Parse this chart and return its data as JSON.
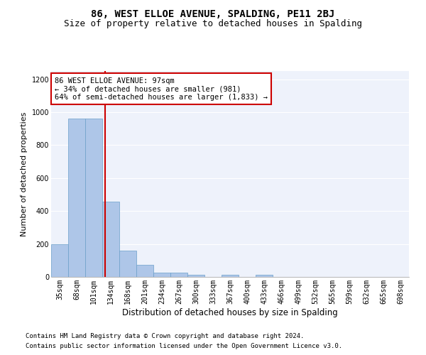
{
  "title1": "86, WEST ELLOE AVENUE, SPALDING, PE11 2BJ",
  "title2": "Size of property relative to detached houses in Spalding",
  "xlabel": "Distribution of detached houses by size in Spalding",
  "ylabel": "Number of detached properties",
  "footnote1": "Contains HM Land Registry data © Crown copyright and database right 2024.",
  "footnote2": "Contains public sector information licensed under the Open Government Licence v3.0.",
  "annotation_line1": "86 WEST ELLOE AVENUE: 97sqm",
  "annotation_line2": "← 34% of detached houses are smaller (981)",
  "annotation_line3": "64% of semi-detached houses are larger (1,833) →",
  "categories": [
    "35sqm",
    "68sqm",
    "101sqm",
    "134sqm",
    "168sqm",
    "201sqm",
    "234sqm",
    "267sqm",
    "300sqm",
    "333sqm",
    "367sqm",
    "400sqm",
    "433sqm",
    "466sqm",
    "499sqm",
    "532sqm",
    "565sqm",
    "599sqm",
    "632sqm",
    "665sqm",
    "698sqm"
  ],
  "values": [
    200,
    960,
    960,
    455,
    160,
    75,
    25,
    25,
    15,
    0,
    15,
    0,
    15,
    0,
    0,
    0,
    0,
    0,
    0,
    0,
    0
  ],
  "bar_color": "#aec6e8",
  "bar_edge_color": "#6b9fc9",
  "vline_x": 2.66,
  "vline_color": "#cc0000",
  "annotation_box_color": "#cc0000",
  "annotation_text_color": "#000000",
  "bg_color": "#eef2fb",
  "ylim": [
    0,
    1250
  ],
  "yticks": [
    0,
    200,
    400,
    600,
    800,
    1000,
    1200
  ],
  "title1_fontsize": 10,
  "title2_fontsize": 9,
  "xlabel_fontsize": 8.5,
  "ylabel_fontsize": 8,
  "tick_fontsize": 7,
  "annot_fontsize": 7.5,
  "footnote_fontsize": 6.5
}
